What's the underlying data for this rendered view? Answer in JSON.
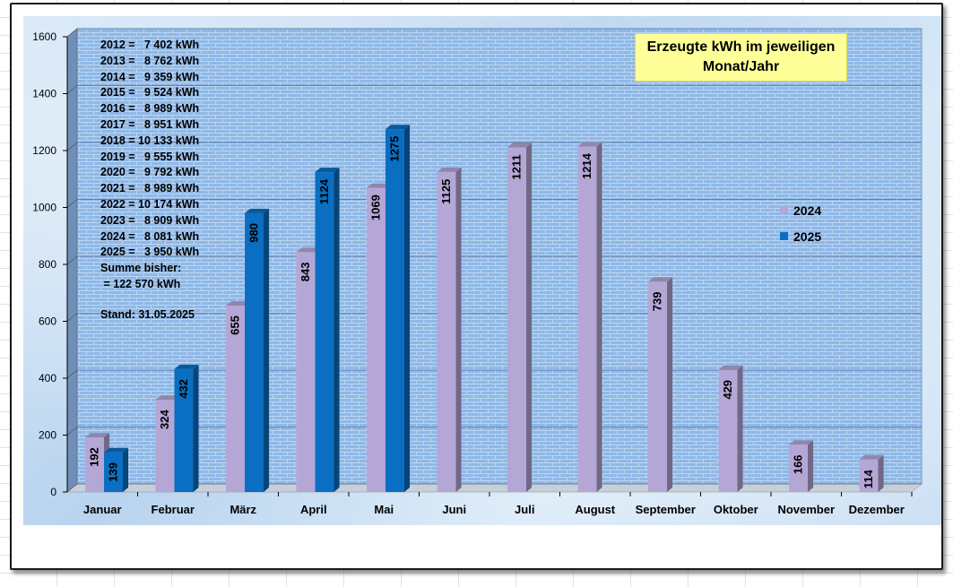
{
  "chart_data": {
    "type": "bar",
    "title_lines": [
      "Erzeugte kWh im jeweiligen",
      "Monat/Jahr"
    ],
    "categories": [
      "Januar",
      "Februar",
      "März",
      "April",
      "Mai",
      "Juni",
      "Juli",
      "August",
      "September",
      "Oktober",
      "November",
      "Dezember"
    ],
    "series": [
      {
        "name": "2024",
        "color": "#b4a7d6",
        "values": [
          192,
          324,
          655,
          843,
          1069,
          1125,
          1211,
          1214,
          739,
          429,
          166,
          114
        ]
      },
      {
        "name": "2025",
        "color": "#0a6fc2",
        "values": [
          139,
          432,
          980,
          1124,
          1275,
          null,
          null,
          null,
          null,
          null,
          null,
          null
        ]
      }
    ],
    "ylim": [
      0,
      1600
    ],
    "yticks": [
      0,
      200,
      400,
      600,
      800,
      1000,
      1200,
      1400,
      1600
    ],
    "grid": true,
    "legend": "right",
    "annotations": {
      "yearly_totals": [
        "2012 =   7 402 kWh",
        "2013 =   8 762 kWh",
        "2014 =   9 359 kWh",
        "2015 =   9 524 kWh",
        "2016 =   8 989 kWh",
        "2017 =   8 951 kWh",
        "2018 = 10 133 kWh",
        "2019 =   9 555 kWh",
        "2020 =   9 792 kWh",
        "2021 =   8 989 kWh",
        "2022 = 10 174 kWh",
        "2023 =   8 909 kWh",
        "2024 =   8 081 kWh",
        "2025 =   3 950 kWh"
      ],
      "sum_label": "Summe bisher:",
      "sum_value": " = 122 570 kWh",
      "stand": "Stand: 31.05.2025"
    }
  }
}
